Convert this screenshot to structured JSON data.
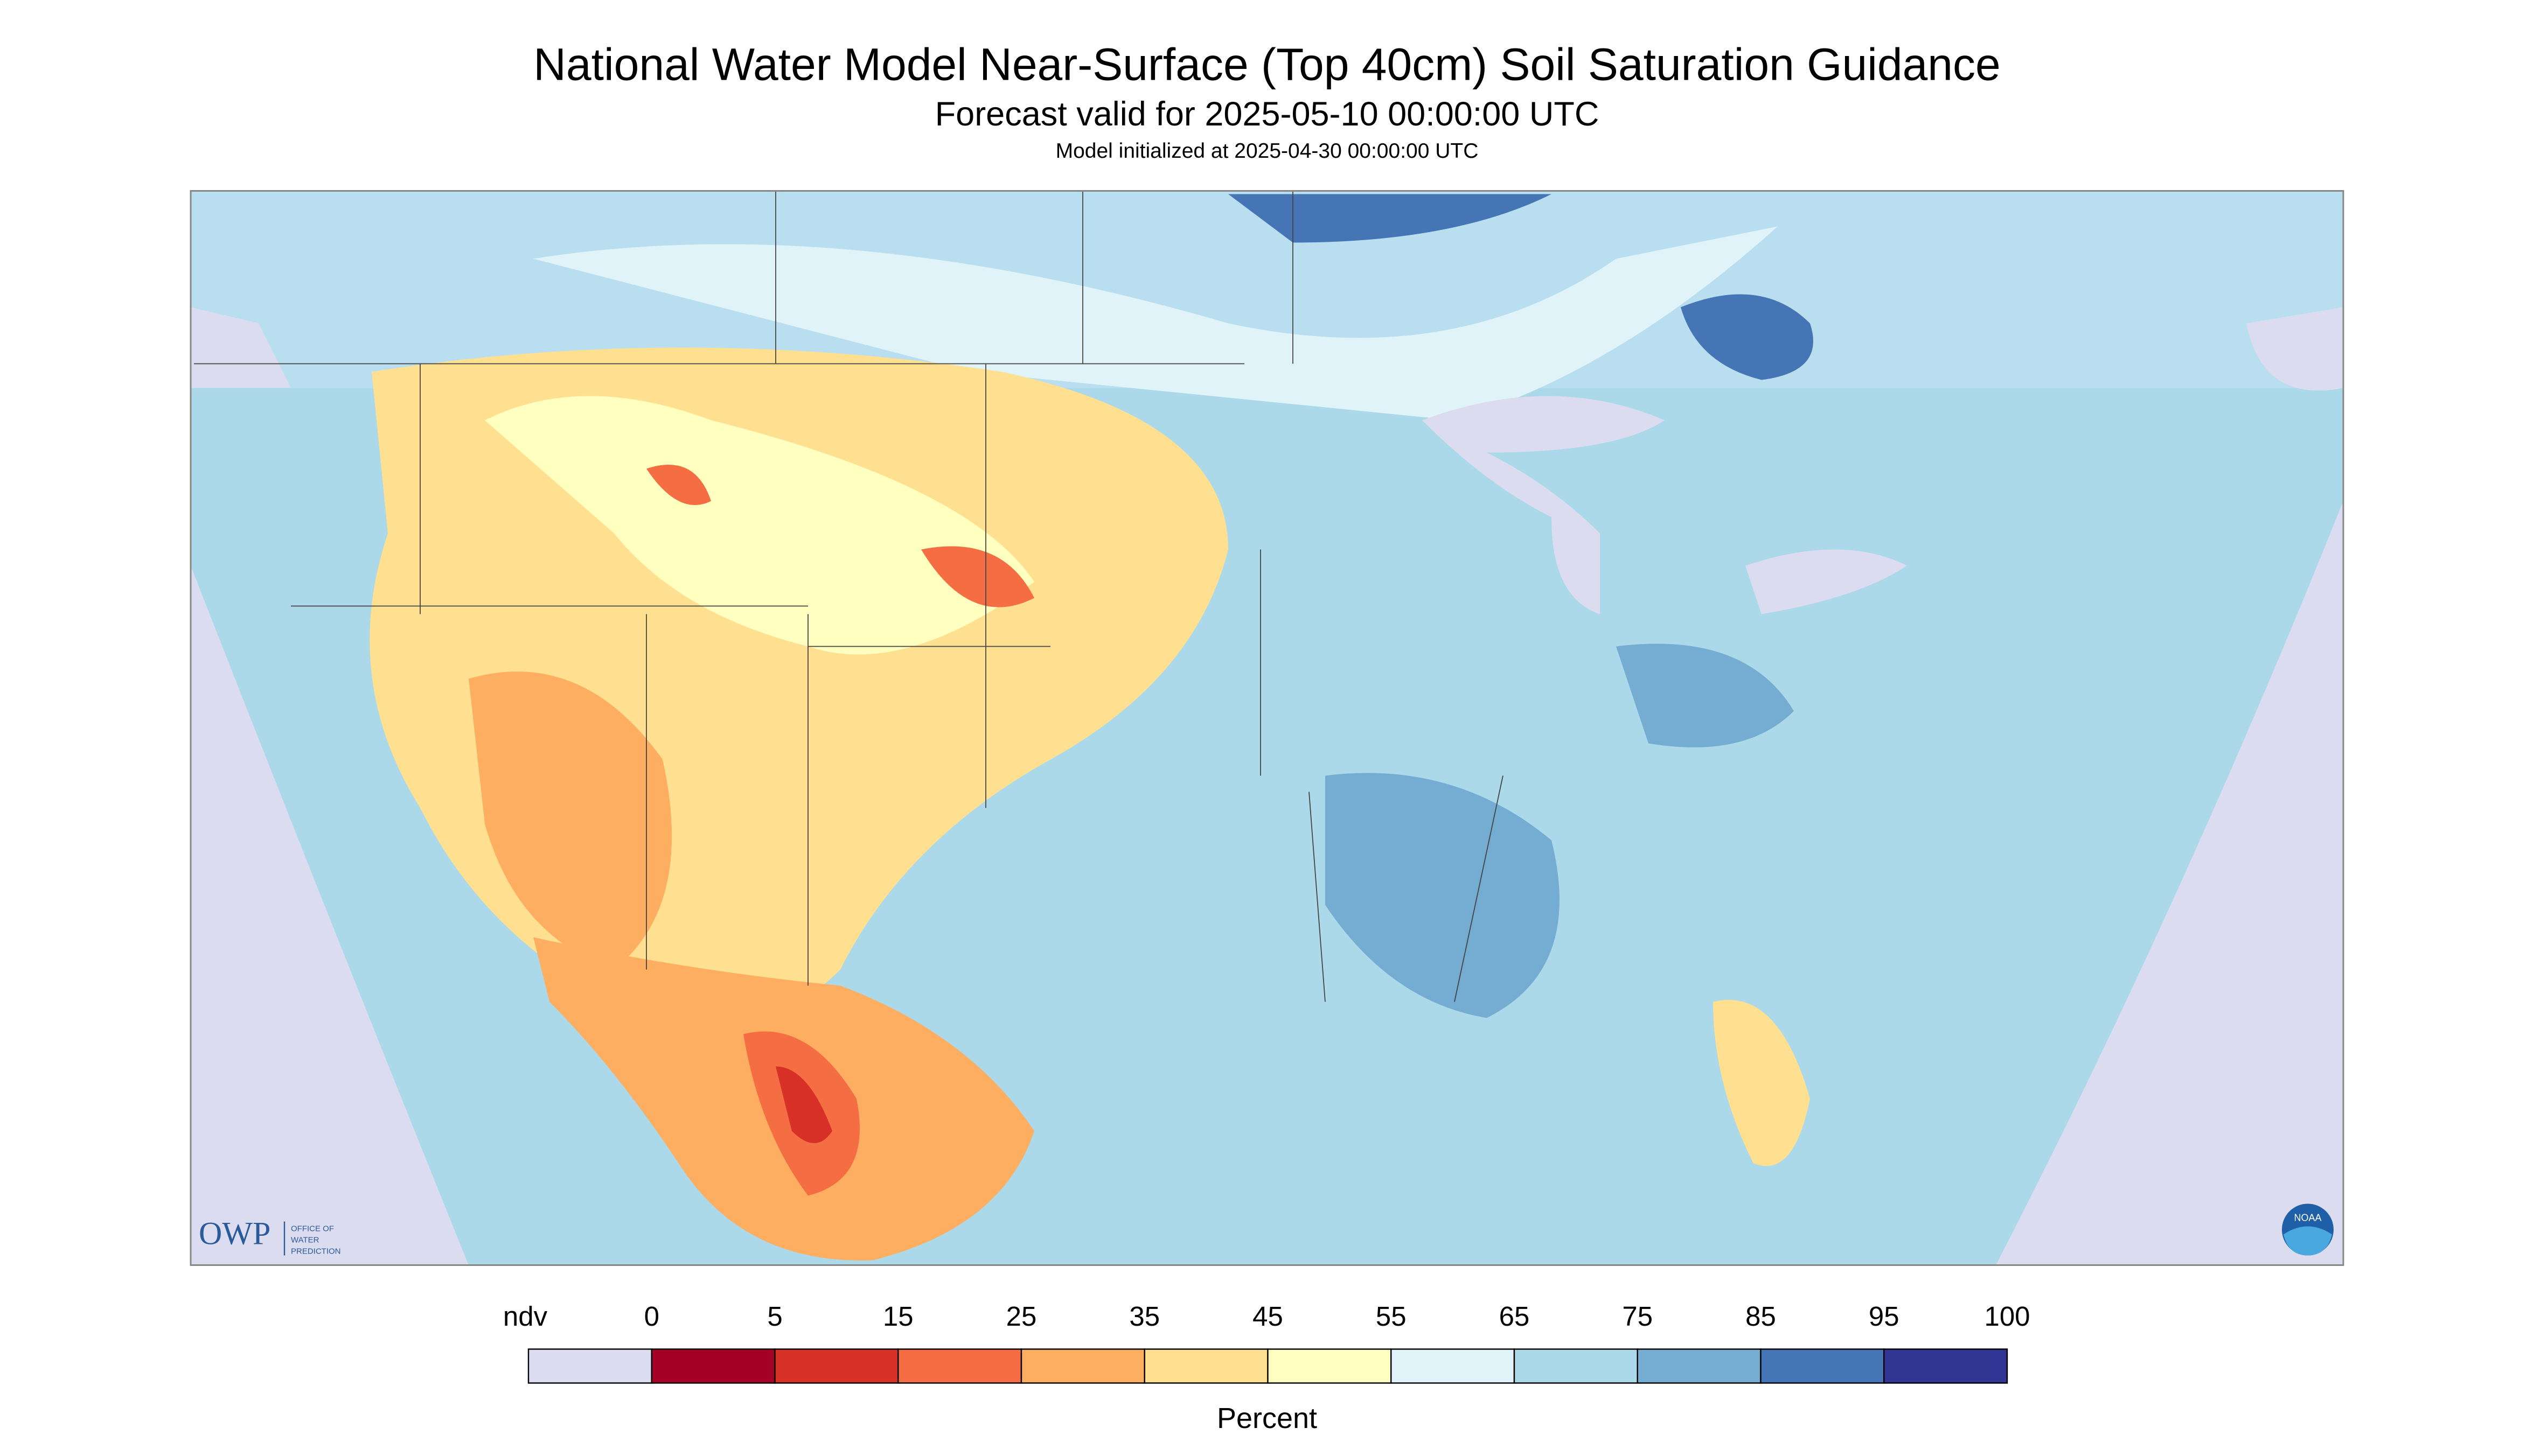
{
  "header": {
    "title": "National Water Model Near-Surface (Top 40cm) Soil Saturation Guidance",
    "subtitle": "Forecast valid for 2025-05-10 00:00:00 UTC",
    "note": "Model initialized at 2025-04-30 00:00:00 UTC"
  },
  "legend": {
    "labels": [
      "ndv",
      "0",
      "5",
      "15",
      "25",
      "35",
      "45",
      "55",
      "65",
      "75",
      "85",
      "95",
      "100"
    ],
    "colors": [
      "#dcdcf0",
      "#a50026",
      "#d73027",
      "#f46d43",
      "#fdae61",
      "#fee090",
      "#ffffbf",
      "#e0f3f8",
      "#abd9e9",
      "#74add1",
      "#4575b4",
      "#313695"
    ],
    "unit": "Percent"
  },
  "logo": {
    "name": "OWP",
    "line1": "OFFICE OF",
    "line2": "WATER",
    "line3": "PREDICTION",
    "badge": "NOAA"
  }
}
